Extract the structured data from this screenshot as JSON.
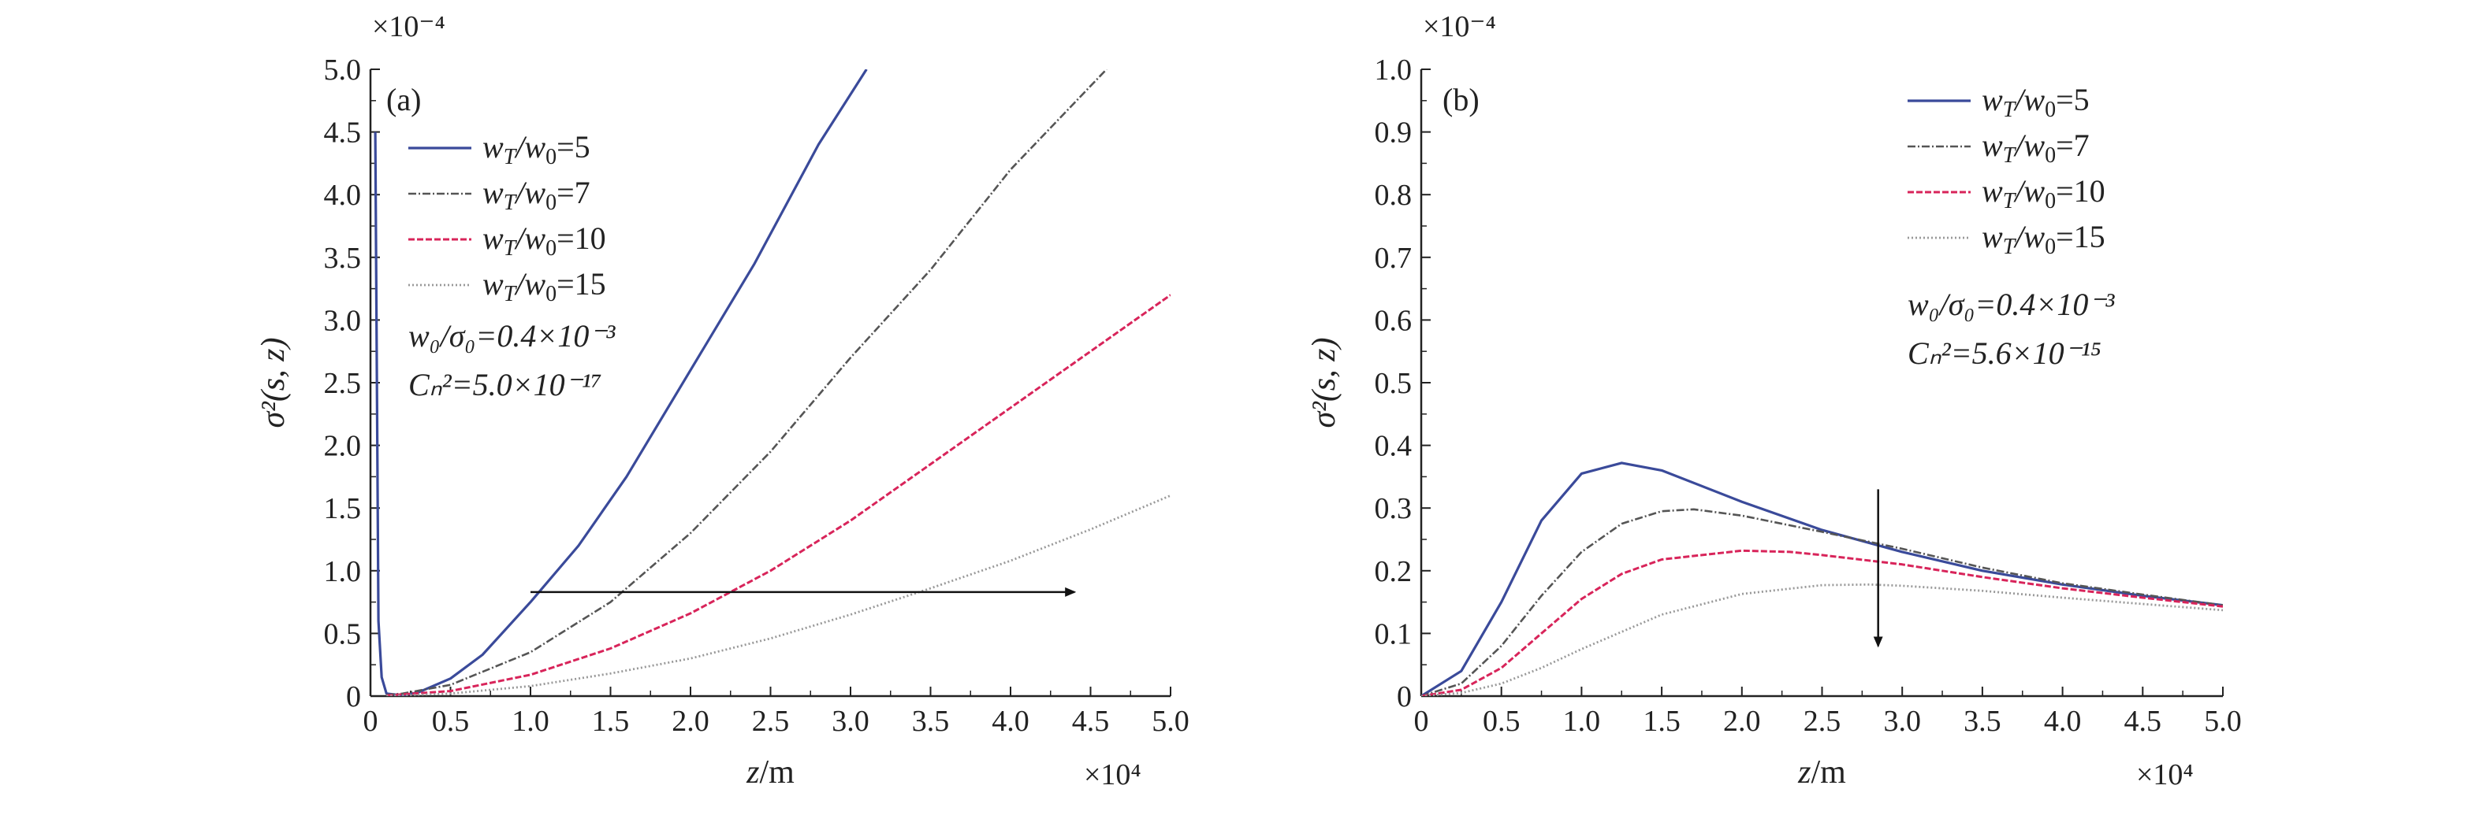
{
  "colors": {
    "axis": "#222222",
    "w5": "#3a4a9a",
    "w7": "#555555",
    "w10": "#d8245a",
    "w15": "#999999",
    "arrow": "#111111"
  },
  "chart_data": [
    {
      "type": "line",
      "panel_label": "(a)",
      "xlabel": "z/m",
      "ylabel": "σ²(s, z)",
      "x_multiplier": "×10⁴",
      "y_multiplier": "×10⁻⁴",
      "xlim": [
        0,
        5.0
      ],
      "ylim": [
        0,
        5.0
      ],
      "xticks": [
        "0",
        "0.5",
        "1.0",
        "1.5",
        "2.0",
        "2.5",
        "3.0",
        "3.5",
        "4.0",
        "4.5",
        "5.0"
      ],
      "yticks": [
        "0",
        "0.5",
        "1.0",
        "1.5",
        "2.0",
        "2.5",
        "3.0",
        "3.5",
        "4.0",
        "4.5",
        "5.0"
      ],
      "grid": false,
      "legend_position": "top-left",
      "annotations": [
        "w₀/σ₀=0.4×10⁻³",
        "Cₙ²=5.0×10⁻¹⁷"
      ],
      "series": [
        {
          "name": "wT/w0=5",
          "legend_main": "w",
          "legend_sub1": "T",
          "legend_mid": "/w",
          "legend_sub2": "0",
          "legend_val": "=5",
          "x": [
            0.03,
            0.05,
            0.07,
            0.1,
            0.2,
            0.3,
            0.5,
            0.7,
            1.0,
            1.3,
            1.6,
            2.0,
            2.4,
            2.8,
            3.1
          ],
          "y": [
            4.5,
            0.6,
            0.15,
            0.02,
            0.005,
            0.03,
            0.14,
            0.33,
            0.75,
            1.2,
            1.75,
            2.6,
            3.45,
            4.4,
            5.0
          ]
        },
        {
          "name": "wT/w0=7",
          "legend_main": "w",
          "legend_sub1": "T",
          "legend_mid": "/w",
          "legend_sub2": "0",
          "legend_val": "=7",
          "x": [
            0.1,
            0.2,
            0.5,
            1.0,
            1.5,
            2.0,
            2.5,
            3.0,
            3.5,
            4.0,
            4.6
          ],
          "y": [
            0.01,
            0.02,
            0.09,
            0.35,
            0.75,
            1.3,
            1.95,
            2.7,
            3.4,
            4.2,
            5.0
          ]
        },
        {
          "name": "wT/w0=10",
          "legend_main": "w",
          "legend_sub1": "T",
          "legend_mid": "/w",
          "legend_sub2": "0",
          "legend_val": "=10",
          "x": [
            0.1,
            0.5,
            1.0,
            1.5,
            2.0,
            2.5,
            3.0,
            3.5,
            4.0,
            4.5,
            5.0
          ],
          "y": [
            0.005,
            0.04,
            0.17,
            0.38,
            0.66,
            1.0,
            1.4,
            1.85,
            2.3,
            2.75,
            3.2
          ]
        },
        {
          "name": "wT/w0=15",
          "legend_main": "w",
          "legend_sub1": "T",
          "legend_mid": "/w",
          "legend_sub2": "0",
          "legend_val": "=15",
          "x": [
            0.1,
            0.5,
            1.0,
            1.5,
            2.0,
            2.5,
            3.0,
            3.5,
            4.0,
            4.5,
            5.0
          ],
          "y": [
            0.002,
            0.02,
            0.08,
            0.18,
            0.3,
            0.46,
            0.65,
            0.86,
            1.08,
            1.33,
            1.6
          ]
        }
      ],
      "arrow": {
        "from": [
          1.0,
          0.83
        ],
        "to": [
          4.4,
          0.83
        ]
      }
    },
    {
      "type": "line",
      "panel_label": "(b)",
      "xlabel": "z/m",
      "ylabel": "σ²(s, z)",
      "x_multiplier": "×10⁴",
      "y_multiplier": "×10⁻⁴",
      "xlim": [
        0,
        5.0
      ],
      "ylim": [
        0,
        1.0
      ],
      "xticks": [
        "0",
        "0.5",
        "1.0",
        "1.5",
        "2.0",
        "2.5",
        "3.0",
        "3.5",
        "4.0",
        "4.5",
        "5.0"
      ],
      "yticks": [
        "0",
        "0.1",
        "0.2",
        "0.3",
        "0.4",
        "0.5",
        "0.6",
        "0.7",
        "0.8",
        "0.9",
        "1.0"
      ],
      "grid": false,
      "legend_position": "top-right",
      "annotations": [
        "w₀/σ₀=0.4×10⁻³",
        "Cₙ²=5.6×10⁻¹⁵"
      ],
      "series": [
        {
          "name": "wT/w0=5",
          "legend_main": "w",
          "legend_sub1": "T",
          "legend_mid": "/w",
          "legend_sub2": "0",
          "legend_val": "=5",
          "x": [
            0,
            0.25,
            0.5,
            0.75,
            1.0,
            1.25,
            1.5,
            2.0,
            2.5,
            3.0,
            3.5,
            4.0,
            4.5,
            5.0
          ],
          "y": [
            0,
            0.04,
            0.15,
            0.28,
            0.355,
            0.372,
            0.36,
            0.31,
            0.265,
            0.23,
            0.2,
            0.178,
            0.16,
            0.145
          ]
        },
        {
          "name": "wT/w0=7",
          "legend_main": "w",
          "legend_sub1": "T",
          "legend_mid": "/w",
          "legend_sub2": "0",
          "legend_val": "=7",
          "x": [
            0,
            0.25,
            0.5,
            0.75,
            1.0,
            1.25,
            1.5,
            1.7,
            2.0,
            2.5,
            3.0,
            3.5,
            4.0,
            4.5,
            5.0
          ],
          "y": [
            0,
            0.02,
            0.08,
            0.16,
            0.23,
            0.275,
            0.295,
            0.298,
            0.288,
            0.262,
            0.235,
            0.205,
            0.18,
            0.162,
            0.145
          ]
        },
        {
          "name": "wT/w0=10",
          "legend_main": "w",
          "legend_sub1": "T",
          "legend_mid": "/w",
          "legend_sub2": "0",
          "legend_val": "=10",
          "x": [
            0,
            0.25,
            0.5,
            0.75,
            1.0,
            1.25,
            1.5,
            2.0,
            2.3,
            2.5,
            3.0,
            3.5,
            4.0,
            4.5,
            5.0
          ],
          "y": [
            0,
            0.01,
            0.045,
            0.1,
            0.155,
            0.195,
            0.218,
            0.232,
            0.23,
            0.225,
            0.21,
            0.19,
            0.172,
            0.157,
            0.143
          ]
        },
        {
          "name": "wT/w0=15",
          "legend_main": "w",
          "legend_sub1": "T",
          "legend_mid": "/w",
          "legend_sub2": "0",
          "legend_val": "=15",
          "x": [
            0,
            0.25,
            0.5,
            0.75,
            1.0,
            1.5,
            2.0,
            2.5,
            2.8,
            3.0,
            3.5,
            4.0,
            4.5,
            5.0
          ],
          "y": [
            0,
            0.005,
            0.02,
            0.045,
            0.075,
            0.13,
            0.163,
            0.177,
            0.178,
            0.176,
            0.168,
            0.157,
            0.147,
            0.137
          ]
        }
      ],
      "arrow": {
        "from": [
          2.85,
          0.33
        ],
        "to": [
          2.85,
          0.08
        ]
      }
    }
  ]
}
